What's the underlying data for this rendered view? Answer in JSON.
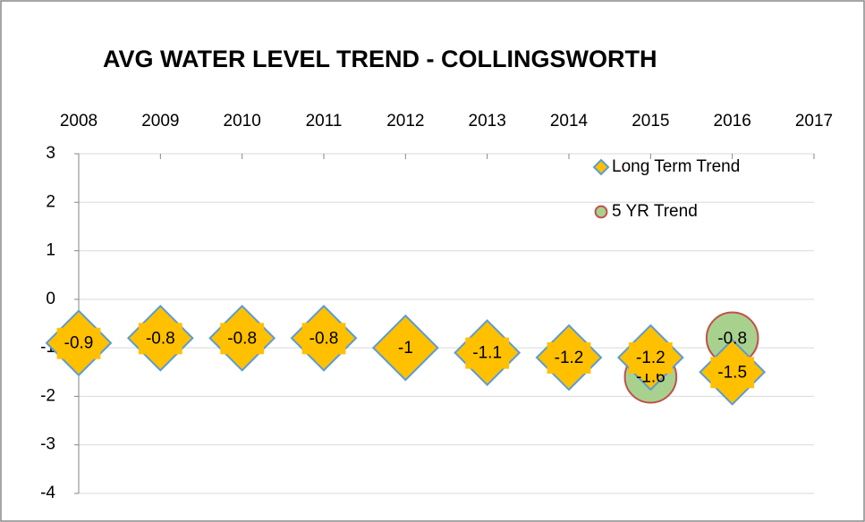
{
  "chart_data": {
    "type": "scatter",
    "title": "AVG WATER LEVEL TREND - COLLINGSWORTH",
    "xlim": [
      2008,
      2017
    ],
    "xticks": [
      2008,
      2009,
      2010,
      2011,
      2012,
      2013,
      2014,
      2015,
      2016,
      2017
    ],
    "ylim": [
      -4,
      3
    ],
    "yticks": [
      -4,
      -3,
      -2,
      -1,
      0,
      1,
      2,
      3
    ],
    "grid": true,
    "legend": "upper right",
    "series": [
      {
        "name": "Long Term Trend",
        "color": "#ffc000",
        "edge": "#5b9bd5",
        "marker": "diamond",
        "x": [
          2008,
          2009,
          2010,
          2011,
          2012,
          2013,
          2014,
          2015,
          2016
        ],
        "values": [
          -0.9,
          -0.8,
          -0.8,
          -0.8,
          -1,
          -1.1,
          -1.2,
          -1.2,
          -1.5
        ]
      },
      {
        "name": "5 YR Trend",
        "color": "#a9d18e",
        "edge": "#c0504d",
        "marker": "circle",
        "x": [
          2015,
          2016
        ],
        "values": [
          -1.6,
          -0.8
        ]
      }
    ]
  }
}
